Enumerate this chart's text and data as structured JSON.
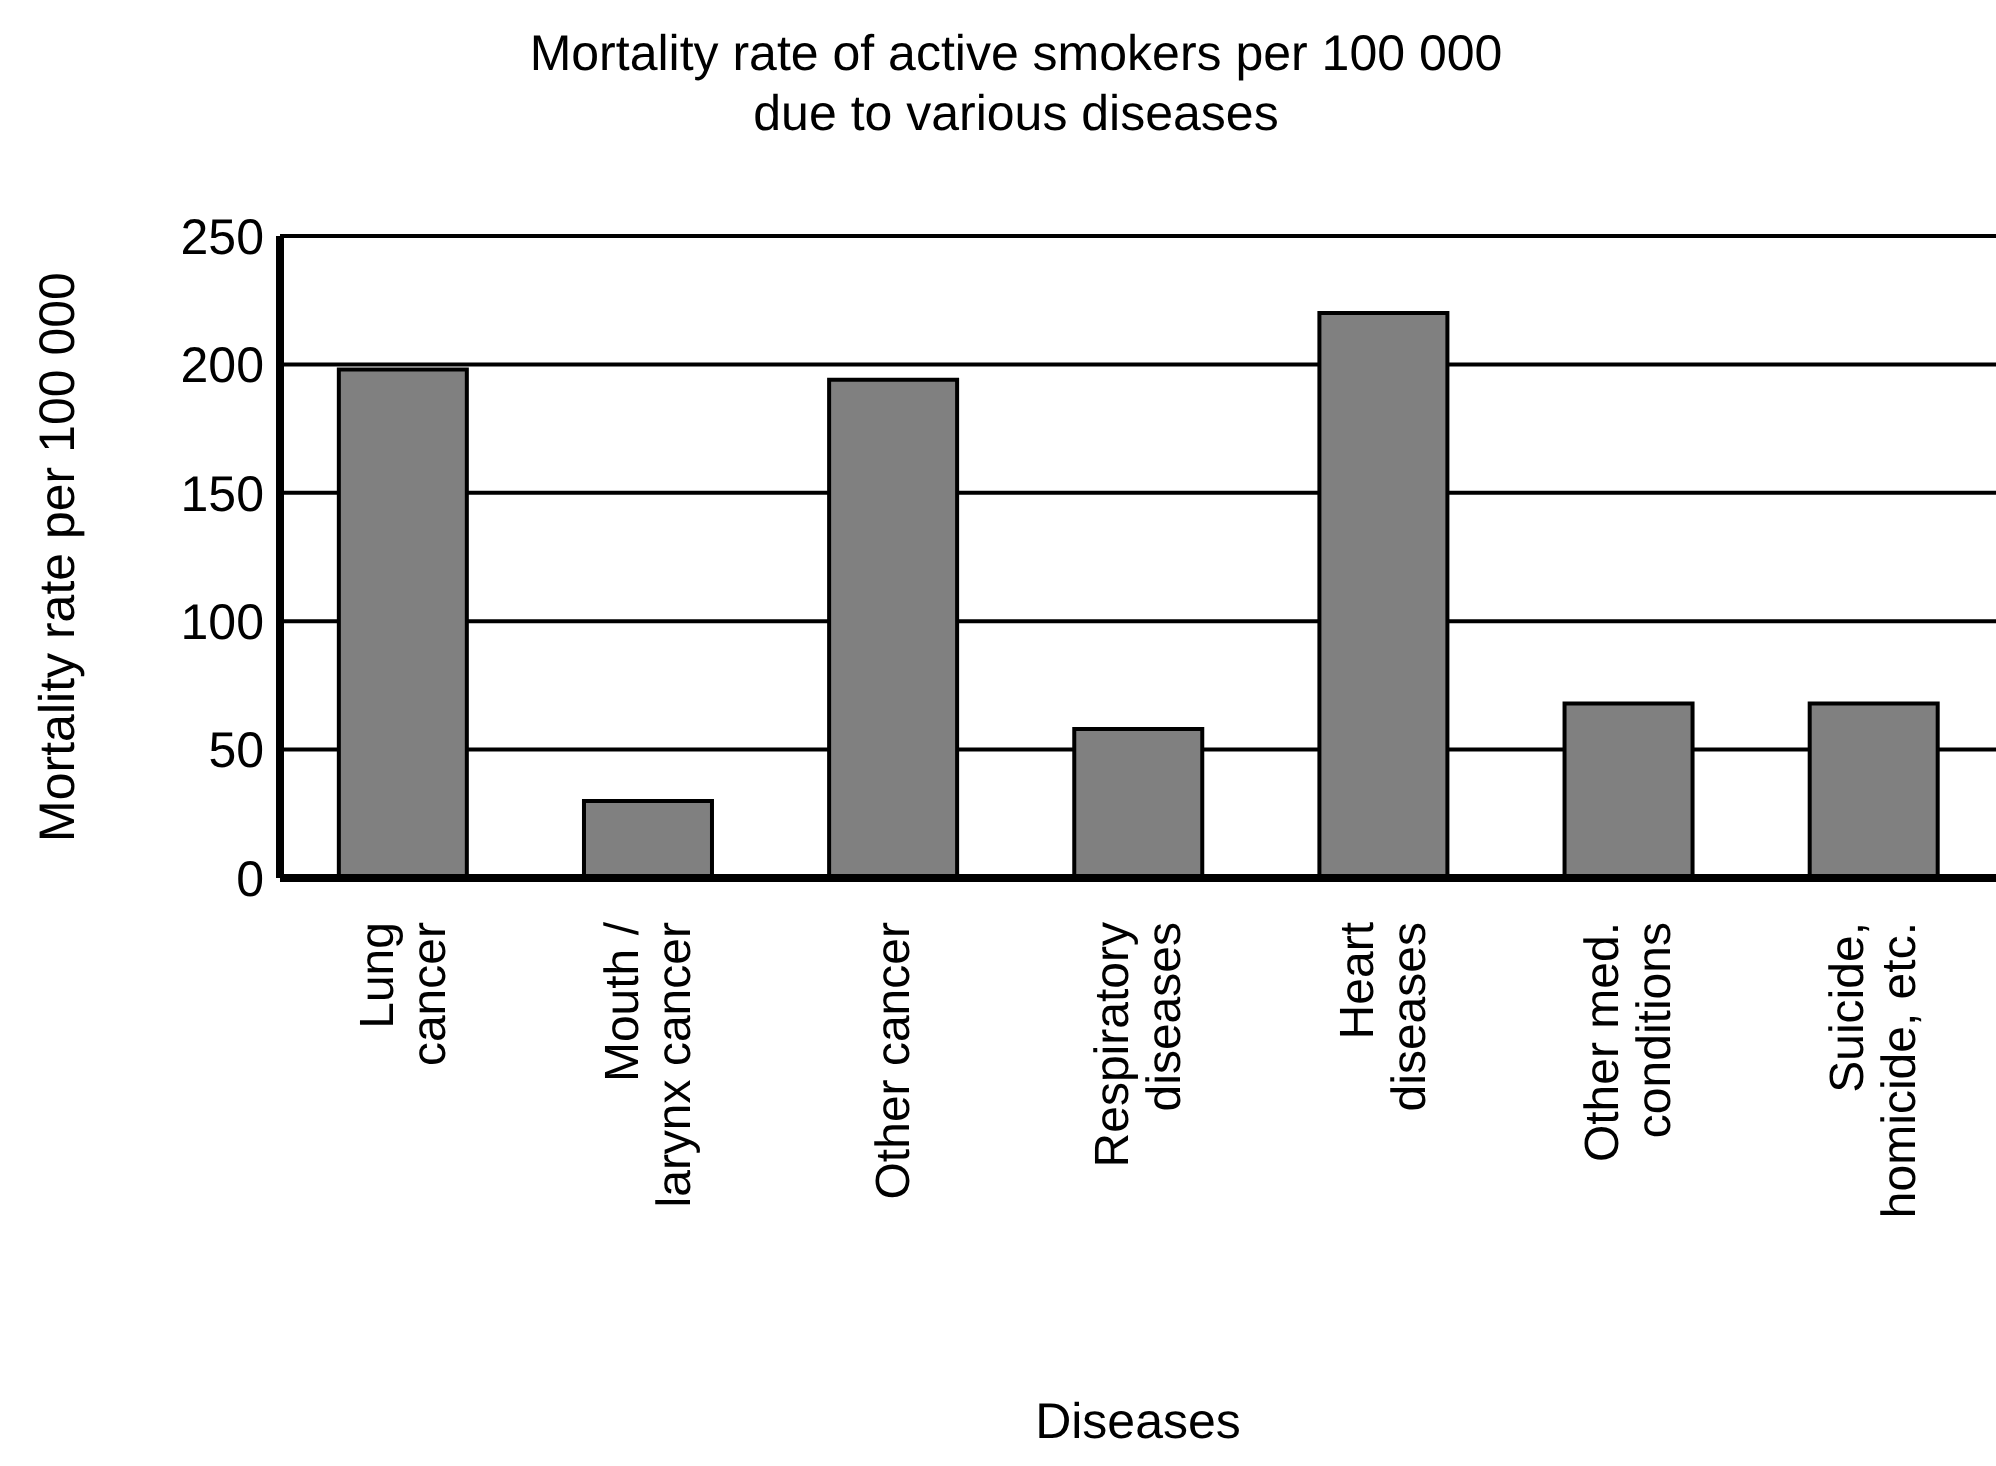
{
  "chart_data": {
    "type": "bar",
    "title": "Mortality rate of active smokers per 100 000\ndue to various diseases",
    "xlabel": "Diseases",
    "ylabel": "Mortality rate per 100 000",
    "categories": [
      "Lung\ncancer",
      "Mouth /\nlarynx cancer",
      "Other cancer",
      "Respiratory\ndiseases",
      "Heart\ndiseases",
      "Other med.\nconditions",
      "Suicide,\nhomicide, etc."
    ],
    "values": [
      198,
      30,
      194,
      58,
      220,
      68,
      68
    ],
    "color": "#808080",
    "ylim": [
      0,
      250
    ],
    "yticks": [
      0,
      50,
      100,
      150,
      200,
      250
    ],
    "grid": "y"
  }
}
